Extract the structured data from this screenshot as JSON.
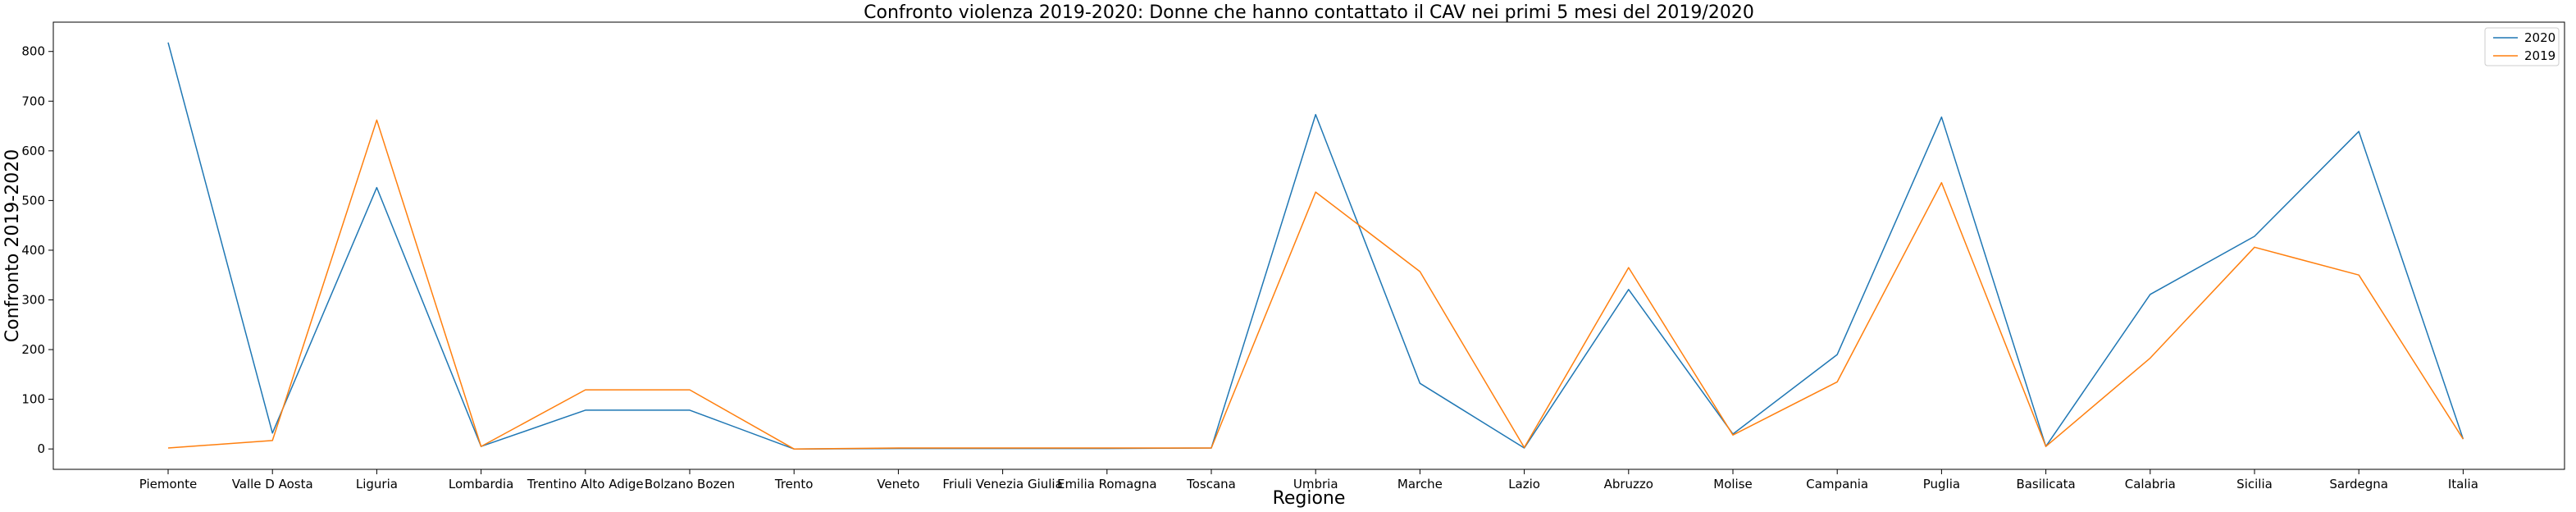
{
  "chart_data": {
    "type": "line",
    "title": "Confronto violenza 2019-2020: Donne che hanno contattato il CAV nei primi 5 mesi del 2019/2020",
    "xlabel": "Regione",
    "ylabel": "Confronto 2019-2020",
    "categories": [
      "Piemonte",
      "Valle D Aosta",
      "Liguria",
      "Lombardia",
      "Trentino Alto Adige",
      "Bolzano Bozen",
      "Trento",
      "Veneto",
      "Friuli Venezia Giulia",
      "Emilia Romagna",
      "Toscana",
      "Umbria",
      "Marche",
      "Lazio",
      "Abruzzo",
      "Molise",
      "Campania",
      "Puglia",
      "Basilicata",
      "Calabria",
      "Sicilia",
      "Sardegna",
      "Italia"
    ],
    "series": [
      {
        "name": "2020",
        "color": "#1f77b4",
        "values": [
          818,
          32,
          526,
          5,
          78,
          78,
          0,
          1,
          1,
          1,
          2,
          673,
          132,
          2,
          321,
          30,
          190,
          668,
          5,
          311,
          428,
          639,
          20
        ]
      },
      {
        "name": "2019",
        "color": "#ff7f0e",
        "values": [
          2,
          17,
          662,
          5,
          119,
          119,
          0,
          2,
          2,
          2,
          2,
          517,
          357,
          3,
          365,
          28,
          135,
          536,
          5,
          183,
          406,
          350,
          20
        ]
      }
    ],
    "yticks": [
      0,
      100,
      200,
      300,
      400,
      500,
      600,
      700,
      800
    ],
    "ylim": [
      -41,
      859
    ],
    "grid": false,
    "legend_position": "top-right"
  }
}
